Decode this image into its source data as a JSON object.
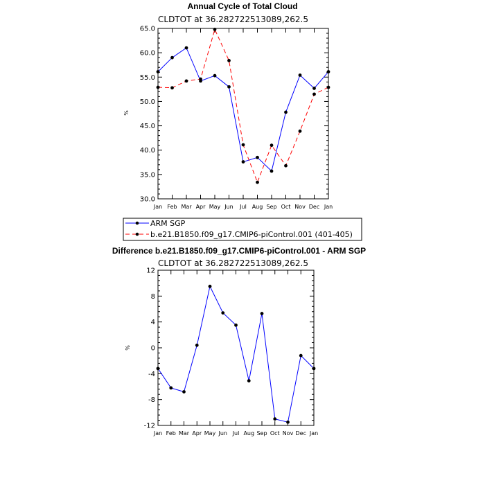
{
  "chart_data": [
    {
      "type": "line",
      "title": "Annual Cycle of Total Cloud",
      "subtitle": "CLDTOT at 36.282722513089,262.5",
      "xlabel": "",
      "ylabel": "%",
      "ylim": [
        30.0,
        65.0
      ],
      "yticks": [
        "30.0",
        "35.0",
        "40.0",
        "45.0",
        "50.0",
        "55.0",
        "60.0",
        "65.0"
      ],
      "categories": [
        "Jan",
        "Feb",
        "Mar",
        "Apr",
        "May",
        "Jun",
        "Jul",
        "Aug",
        "Sep",
        "Oct",
        "Nov",
        "Dec",
        "Jan"
      ],
      "series": [
        {
          "name": "ARM SGP",
          "color": "#0000ff",
          "dash": "solid",
          "values": [
            56.1,
            59.0,
            61.0,
            54.2,
            55.3,
            53.0,
            37.6,
            38.5,
            35.7,
            47.8,
            55.4,
            52.7,
            56.1
          ]
        },
        {
          "name": "b.e21.B1850.f09_g17.CMIP6-piControl.001 (401-405)",
          "color": "#ff0000",
          "dash": "dashed",
          "values": [
            52.9,
            52.8,
            54.2,
            54.6,
            64.8,
            58.4,
            41.1,
            33.4,
            41.0,
            36.8,
            43.9,
            51.5,
            52.9
          ]
        }
      ],
      "legend": [
        "ARM SGP",
        "b.e21.B1850.f09_g17.CMIP6-piControl.001 (401-405)"
      ]
    },
    {
      "type": "line",
      "title": "Difference b.e21.B1850.f09_g17.CMIP6-piControl.001 - ARM SGP",
      "subtitle": "CLDTOT at 36.282722513089,262.5",
      "xlabel": "",
      "ylabel": "%",
      "ylim": [
        -12,
        12
      ],
      "yticks": [
        "-12",
        "-8",
        "-4",
        "0",
        "4",
        "8",
        "12"
      ],
      "categories": [
        "Jan",
        "Feb",
        "Mar",
        "Apr",
        "May",
        "Jun",
        "Jul",
        "Aug",
        "Sep",
        "Oct",
        "Nov",
        "Dec",
        "Jan"
      ],
      "series": [
        {
          "name": "Difference",
          "color": "#0000ff",
          "dash": "solid",
          "values": [
            -3.2,
            -6.2,
            -6.8,
            0.4,
            9.5,
            5.4,
            3.5,
            -5.1,
            5.3,
            -11.0,
            -11.5,
            -1.2,
            -3.2
          ]
        }
      ]
    }
  ]
}
